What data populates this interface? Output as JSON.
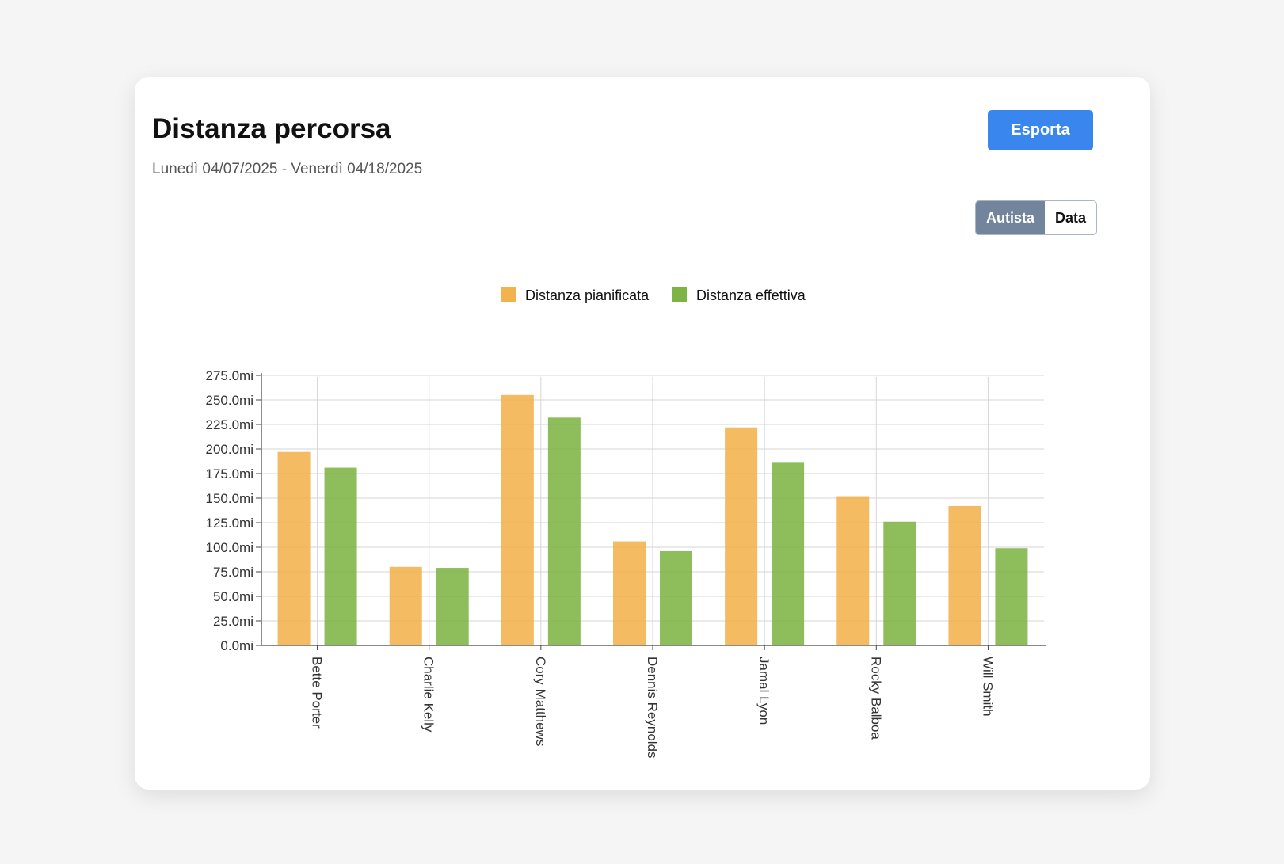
{
  "header": {
    "title": "Distanza percorsa",
    "subtitle": "Lunedì 04/07/2025 - Venerdì 04/18/2025",
    "export_label": "Esporta"
  },
  "view_toggle": {
    "options": [
      {
        "label": "Autista",
        "active": true
      },
      {
        "label": "Data",
        "active": false
      }
    ]
  },
  "colors": {
    "planned": "#f2b24d",
    "actual": "#7eb446",
    "accent": "#3a86ef"
  },
  "chart_data": {
    "type": "bar",
    "categories": [
      "Bette Porter",
      "Charlie Kelly",
      "Cory Matthews",
      "Dennis Reynolds",
      "Jamal Lyon",
      "Rocky Balboa",
      "Will Smith"
    ],
    "series": [
      {
        "name": "Distanza pianificata",
        "values": [
          197,
          80,
          255,
          106,
          222,
          152,
          142
        ]
      },
      {
        "name": "Distanza effettiva",
        "values": [
          181,
          79,
          232,
          96,
          186,
          126,
          99
        ]
      }
    ],
    "ylim": [
      0,
      275
    ],
    "yticks": [
      "0.0mi",
      "25.0mi",
      "50.0mi",
      "75.0mi",
      "100.0mi",
      "125.0mi",
      "150.0mi",
      "175.0mi",
      "200.0mi",
      "225.0mi",
      "250.0mi",
      "275.0mi"
    ],
    "grid": true,
    "legend": "top-center"
  }
}
